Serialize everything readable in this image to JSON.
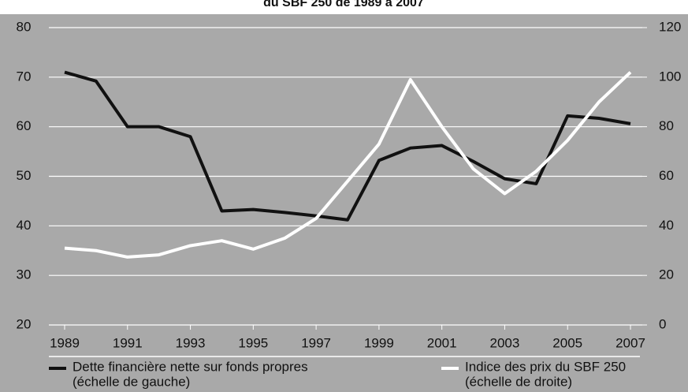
{
  "chart_data": {
    "type": "line",
    "title": "du SBF 250 de 1989 à 2007",
    "x": [
      1989,
      1990,
      1991,
      1992,
      1993,
      1994,
      1995,
      1996,
      1997,
      1998,
      1999,
      2000,
      2001,
      2002,
      2003,
      2004,
      2005,
      2006,
      2007
    ],
    "xlim": [
      1989,
      2007
    ],
    "xticks": [
      1989,
      1991,
      1993,
      1995,
      1997,
      1999,
      2001,
      2003,
      2005,
      2007
    ],
    "ylim": [
      20,
      80
    ],
    "yticks": [
      20,
      30,
      40,
      50,
      60,
      70,
      80
    ],
    "y2lim": [
      0,
      120
    ],
    "y2ticks": [
      0,
      20,
      40,
      60,
      80,
      100,
      120
    ],
    "grid": true,
    "series": [
      {
        "name": "Dette financière nette sur  fonds propres",
        "scale_label": "(échelle de gauche)",
        "color": "#111111",
        "values": [
          71,
          69.2,
          60,
          60,
          58,
          43,
          43.3,
          42.7,
          42,
          41.2,
          53.2,
          55.7,
          56.2,
          53,
          49.5,
          48.5,
          62.2,
          61.7,
          60.6
        ]
      },
      {
        "name": "Indice des prix du SBF 250",
        "scale_label": "(échelle de droite)",
        "color": "#ffffff",
        "axis": "y2",
        "values": [
          31,
          30,
          27.4,
          28.3,
          32,
          34,
          30.6,
          35,
          43,
          58,
          73,
          99,
          80,
          63,
          53,
          62,
          74.5,
          90,
          102
        ]
      }
    ]
  }
}
